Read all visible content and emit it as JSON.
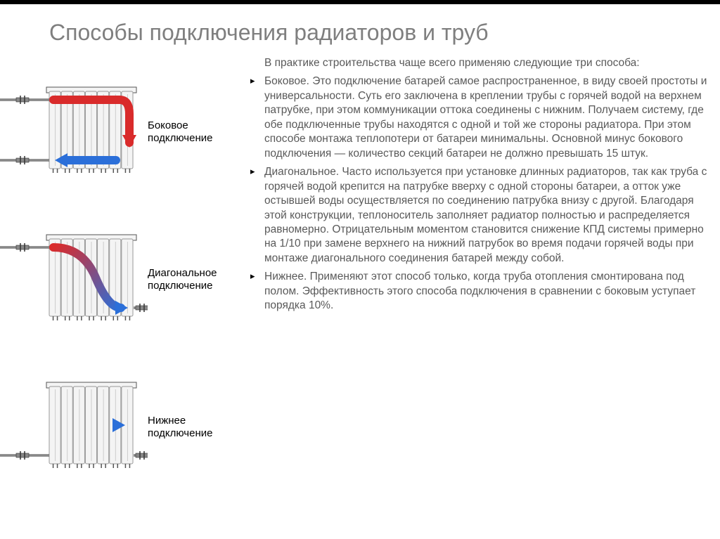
{
  "accent_color": "#000000",
  "title_color": "#7f7f7f",
  "body_color": "#595959",
  "label_color": "#000000",
  "background_color": "#ffffff",
  "title": "Способы подключения радиаторов и труб",
  "title_fontsize": 32,
  "body_fontsize": 15.5,
  "intro": "В практике строительства чаще всего применяю следующие три способа:",
  "bullets": [
    "Боковое. Это подключение батарей самое распространенное, в виду своей простоты и универсальности. Суть его заключена в креплении трубы с горячей водой на верхнем патрубке, при этом коммуникации оттока соединены с нижним. Получаем систему, где обе подключенные трубы находятся с одной и той же стороны радиатора. При этом способе монтажа теплопотери от батареи минимальны. Основной минус бокового подключения — количество секций батареи не должно превышать 15 штук.",
    "Диагональное. Часто используется при установке длинных радиаторов, так как труба с горячей водой крепится на патрубке вверху с одной стороны батареи, а отток уже остывшей воды осуществляется по соединению патрубка внизу с другой. Благодаря этой конструкции, теплоноситель заполняет радиатор полностью и распределяется равномерно. Отрицательным моментом становится снижение КПД системы примерно на 1/10 при замене верхнего на нижний патрубок во время подачи горячей воды при монтаже диагонального соединения батарей между собой.",
    "Нижнее. Применяют этот способ только, когда труба отопления смонтирована под полом. Эффективность этого способа подключения в сравнении с боковым уступает порядка 10%."
  ],
  "diagrams": [
    {
      "label": "Боковое подключение",
      "flow": "side",
      "hot_color": "#d92b2b",
      "cold_color": "#2b6fd9"
    },
    {
      "label": "Диагональное подключение",
      "flow": "diagonal",
      "hot_color": "#d92b2b",
      "cold_color": "#2b6fd9"
    },
    {
      "label": "Нижнее подключение",
      "flow": "bottom",
      "hot_color": "#d92b2b",
      "cold_color": "#2b6fd9"
    }
  ],
  "radiator_style": {
    "sections": 7,
    "section_fill": "#f4f4f4",
    "section_stroke": "#999999",
    "frame_stroke": "#555555",
    "pipe_stroke": "#333333",
    "valve_fill": "#888888"
  }
}
